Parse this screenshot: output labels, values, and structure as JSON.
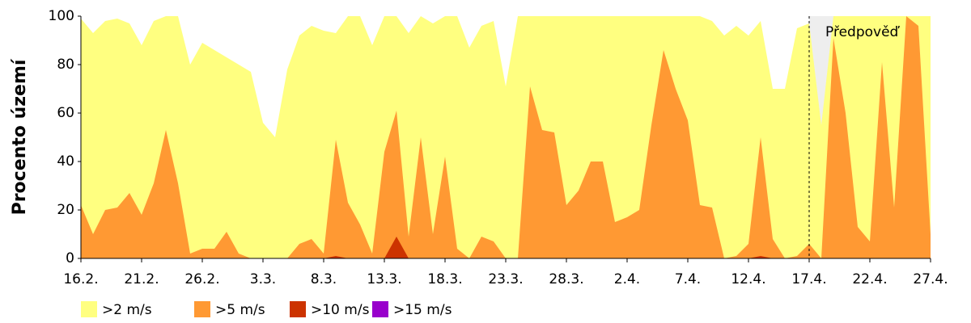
{
  "chart_data": {
    "type": "area",
    "ylabel": "Procento území",
    "categories": [
      "16.2.",
      null,
      null,
      null,
      null,
      "21.2.",
      null,
      null,
      null,
      null,
      "26.2.",
      null,
      null,
      null,
      null,
      "3.3.",
      null,
      null,
      null,
      null,
      "8.3.",
      null,
      null,
      null,
      null,
      "13.3.",
      null,
      null,
      null,
      null,
      "18.3.",
      null,
      null,
      null,
      null,
      "23.3.",
      null,
      null,
      null,
      null,
      "28.3.",
      null,
      null,
      null,
      null,
      "2.4.",
      null,
      null,
      null,
      null,
      "7.4.",
      null,
      null,
      null,
      null,
      "12.4.",
      null,
      null,
      null,
      null,
      "17.4.",
      null,
      null,
      null,
      null,
      "22.4.",
      null,
      null,
      null,
      null,
      "27.4."
    ],
    "series": [
      {
        "name": ">2 m/s",
        "color": "#ffff80",
        "values": [
          99,
          93,
          98,
          99,
          97,
          88,
          98,
          100,
          100,
          80,
          89,
          86,
          83,
          80,
          77,
          56,
          50,
          78,
          92,
          96,
          94,
          93,
          100,
          100,
          88,
          100,
          100,
          93,
          100,
          97,
          100,
          100,
          87,
          96,
          98,
          71,
          100,
          100,
          100,
          100,
          100,
          100,
          100,
          100,
          100,
          100,
          100,
          100,
          100,
          100,
          100,
          100,
          98,
          92,
          96,
          92,
          98,
          70,
          70,
          95,
          97,
          55,
          100,
          100,
          100,
          100,
          100,
          100,
          100,
          100,
          100
        ]
      },
      {
        "name": ">5 m/s",
        "color": "#ff9933",
        "values": [
          22,
          10,
          20,
          21,
          27,
          18,
          31,
          53,
          31,
          2,
          4,
          4,
          11,
          2,
          0,
          0,
          0,
          0,
          6,
          8,
          2,
          49,
          23,
          14,
          2,
          44,
          61,
          9,
          50,
          10,
          42,
          4,
          0,
          9,
          7,
          0,
          0,
          71,
          53,
          52,
          22,
          28,
          40,
          40,
          15,
          17,
          20,
          55,
          86,
          70,
          57,
          22,
          21,
          0,
          1,
          6,
          50,
          8,
          0,
          1,
          6,
          0,
          91,
          60,
          13,
          7,
          81,
          21,
          100,
          96,
          10
        ]
      },
      {
        "name": ">10 m/s",
        "color": "#cc3300",
        "values": [
          0,
          0,
          0,
          0,
          0,
          0,
          0,
          0,
          0,
          0,
          0,
          0,
          0,
          0,
          0,
          0,
          0,
          0,
          0,
          0,
          0,
          1,
          0,
          0,
          0,
          0,
          9,
          0,
          0,
          0,
          0,
          0,
          0,
          0,
          0,
          0,
          0,
          0,
          0,
          0,
          0,
          0,
          0,
          0,
          0,
          0,
          0,
          0,
          0,
          0,
          0,
          0,
          0,
          0,
          0,
          0,
          1,
          0,
          0,
          0,
          0,
          0,
          0,
          0,
          0,
          0,
          0,
          0,
          0,
          0,
          0
        ]
      },
      {
        "name": ">15 m/s",
        "color": "#9900cc",
        "values": [
          0,
          0,
          0,
          0,
          0,
          0,
          0,
          0,
          0,
          0,
          0,
          0,
          0,
          0,
          0,
          0,
          0,
          0,
          0,
          0,
          0,
          0,
          0,
          0,
          0,
          0,
          0,
          0,
          0,
          0,
          0,
          0,
          0,
          0,
          0,
          0,
          0,
          0,
          0,
          0,
          0,
          0,
          0,
          0,
          0,
          0,
          0,
          0,
          0,
          0,
          0,
          0,
          0,
          0,
          0,
          0,
          0,
          0,
          0,
          0,
          0,
          0,
          0,
          0,
          0,
          0,
          0,
          0,
          0,
          0,
          0
        ]
      }
    ],
    "ylim": [
      0,
      100
    ],
    "yticks": [
      0,
      20,
      40,
      60,
      80,
      100
    ],
    "forecast_start": "17.4.",
    "forecast_label": "Předpověď",
    "forecast_color": "#eeeeee"
  }
}
